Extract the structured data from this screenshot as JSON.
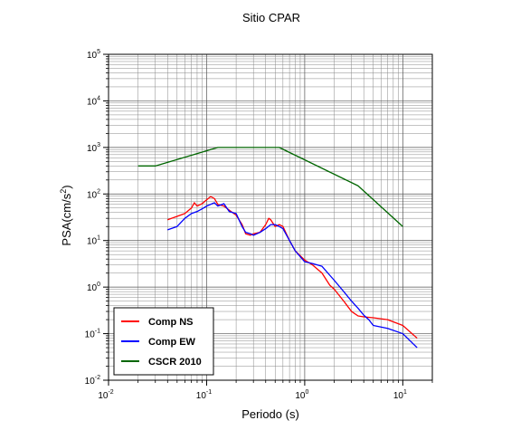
{
  "chart_data": {
    "type": "line",
    "title": "Sitio CPAR",
    "xlabel": "Periodo (s)",
    "ylabel_main": "PSA(cm/s",
    "ylabel_sup": "2",
    "ylabel_close": ")",
    "x_scale": "log",
    "y_scale": "log",
    "xlim": [
      0.01,
      20
    ],
    "ylim": [
      0.01,
      100000
    ],
    "grid": true,
    "legend_position": "bottom-left",
    "x_ticks": [
      {
        "value": 0.01,
        "base": "10",
        "exp": "-2"
      },
      {
        "value": 0.1,
        "base": "10",
        "exp": "-1"
      },
      {
        "value": 1,
        "base": "10",
        "exp": "0"
      },
      {
        "value": 10,
        "base": "10",
        "exp": "1"
      }
    ],
    "y_ticks": [
      {
        "value": 0.01,
        "base": "10",
        "exp": "-2"
      },
      {
        "value": 0.1,
        "base": "10",
        "exp": "-1"
      },
      {
        "value": 1,
        "base": "10",
        "exp": "0"
      },
      {
        "value": 10,
        "base": "10",
        "exp": "1"
      },
      {
        "value": 100,
        "base": "10",
        "exp": "2"
      },
      {
        "value": 1000,
        "base": "10",
        "exp": "3"
      },
      {
        "value": 10000,
        "base": "10",
        "exp": "4"
      },
      {
        "value": 100000,
        "base": "10",
        "exp": "5"
      }
    ],
    "series": [
      {
        "name": "Comp NS",
        "color": "#ff0000",
        "x": [
          0.04,
          0.05,
          0.06,
          0.07,
          0.075,
          0.08,
          0.09,
          0.1,
          0.11,
          0.12,
          0.13,
          0.15,
          0.17,
          0.2,
          0.23,
          0.25,
          0.28,
          0.3,
          0.35,
          0.4,
          0.43,
          0.45,
          0.5,
          0.55,
          0.6,
          0.7,
          0.8,
          1.0,
          1.2,
          1.5,
          1.8,
          2.0,
          2.5,
          3.0,
          3.5,
          4.0,
          5.0,
          7.0,
          10.0,
          14.0
        ],
        "y": [
          28,
          33,
          38,
          50,
          65,
          55,
          62,
          75,
          88,
          80,
          60,
          55,
          45,
          35,
          22,
          14,
          13,
          14,
          15,
          22,
          30,
          28,
          20,
          22,
          20,
          10,
          6,
          3.8,
          3.0,
          2.0,
          1.1,
          0.9,
          0.5,
          0.3,
          0.24,
          0.23,
          0.22,
          0.2,
          0.15,
          0.08
        ]
      },
      {
        "name": "Comp EW",
        "color": "#0000ff",
        "x": [
          0.04,
          0.05,
          0.06,
          0.07,
          0.08,
          0.09,
          0.1,
          0.12,
          0.13,
          0.15,
          0.17,
          0.2,
          0.23,
          0.25,
          0.28,
          0.3,
          0.35,
          0.4,
          0.45,
          0.5,
          0.55,
          0.6,
          0.7,
          0.8,
          1.0,
          1.2,
          1.5,
          1.8,
          2.0,
          2.5,
          3.0,
          3.5,
          4.0,
          4.5,
          5.0,
          7.0,
          10.0,
          14.0
        ],
        "y": [
          17,
          20,
          30,
          38,
          42,
          48,
          55,
          65,
          55,
          62,
          42,
          38,
          20,
          15,
          14,
          13,
          15,
          18,
          22,
          22,
          20,
          18,
          10,
          6,
          3.5,
          3.2,
          2.8,
          1.8,
          1.4,
          0.8,
          0.5,
          0.35,
          0.25,
          0.2,
          0.15,
          0.13,
          0.1,
          0.05
        ]
      },
      {
        "name": "CSCR 2010",
        "color": "#006600",
        "x": [
          0.02,
          0.03,
          0.13,
          0.55,
          3.5,
          10.0
        ],
        "y": [
          400,
          400,
          1000,
          1000,
          150,
          20
        ]
      }
    ]
  }
}
